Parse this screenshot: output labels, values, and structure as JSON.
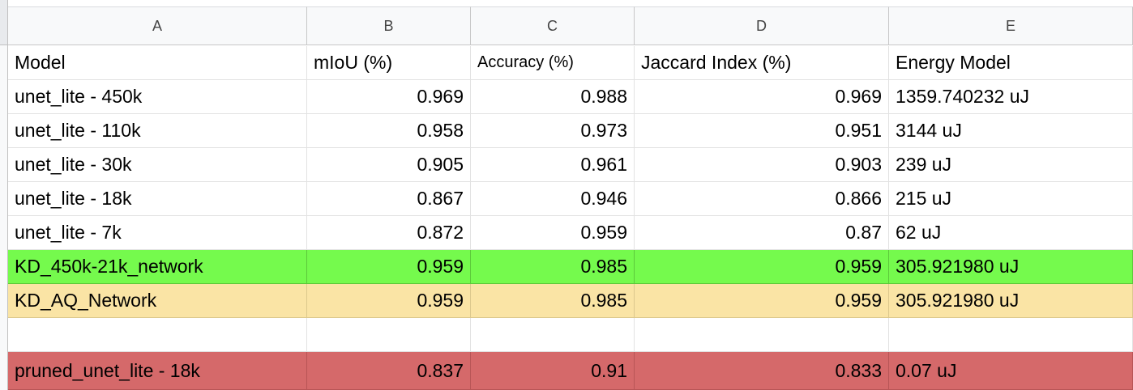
{
  "columns": [
    "A",
    "B",
    "C",
    "D",
    "E"
  ],
  "header_row": {
    "model": "Model",
    "miou": "mIoU (%)",
    "accuracy": "Accuracy (%)",
    "jaccard": "Jaccard Index (%)",
    "energy": "Energy Model"
  },
  "rows": [
    {
      "model": "unet_lite - 450k",
      "miou": "0.969",
      "accuracy": "0.988",
      "jaccard": "0.969",
      "energy": "1359.740232 uJ"
    },
    {
      "model": "unet_lite - 110k",
      "miou": "0.958",
      "accuracy": "0.973",
      "jaccard": "0.951",
      "energy": "3144 uJ"
    },
    {
      "model": "unet_lite - 30k",
      "miou": "0.905",
      "accuracy": "0.961",
      "jaccard": "0.903",
      "energy": "239 uJ"
    },
    {
      "model": "unet_lite - 18k",
      "miou": "0.867",
      "accuracy": "0.946",
      "jaccard": "0.866",
      "energy": "215 uJ"
    },
    {
      "model": "unet_lite - 7k",
      "miou": "0.872",
      "accuracy": "0.959",
      "jaccard": "0.87",
      "energy": "62 uJ"
    },
    {
      "model": "KD_450k-21k_network",
      "miou": "0.959",
      "accuracy": "0.985",
      "jaccard": "0.959",
      "energy": "305.921980 uJ"
    },
    {
      "model": "KD_AQ_Network",
      "miou": "0.959",
      "accuracy": "0.985",
      "jaccard": "0.959",
      "energy": "305.921980 uJ"
    },
    {
      "model": "",
      "miou": "",
      "accuracy": "",
      "jaccard": "",
      "energy": ""
    },
    {
      "model": "pruned_unet_lite - 18k",
      "miou": "0.837",
      "accuracy": "0.91",
      "jaccard": "0.833",
      "energy": "0.07 uJ"
    }
  ],
  "highlight_colors": {
    "green": "#75fa4d",
    "yellow": "#fae4a5",
    "red": "#d5696a"
  }
}
